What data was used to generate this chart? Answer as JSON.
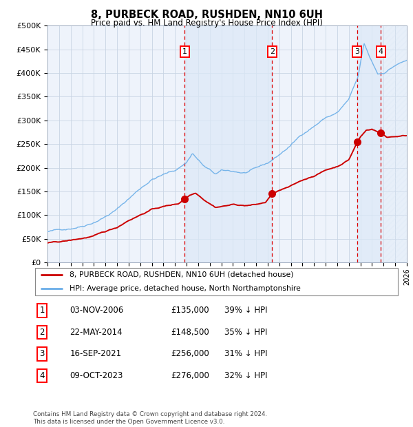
{
  "title": "8, PURBECK ROAD, RUSHDEN, NN10 6UH",
  "subtitle": "Price paid vs. HM Land Registry's House Price Index (HPI)",
  "legend_line1": "8, PURBECK ROAD, RUSHDEN, NN10 6UH (detached house)",
  "legend_line2": "HPI: Average price, detached house, North Northamptonshire",
  "footer": "Contains HM Land Registry data © Crown copyright and database right 2024.\nThis data is licensed under the Open Government Licence v3.0.",
  "transactions": [
    {
      "num": 1,
      "date": "03-NOV-2006",
      "price": 135000,
      "hpi_pct": "39% ↓ HPI",
      "year_x": 2006.84
    },
    {
      "num": 2,
      "date": "22-MAY-2014",
      "price": 148500,
      "hpi_pct": "35% ↓ HPI",
      "year_x": 2014.38
    },
    {
      "num": 3,
      "date": "16-SEP-2021",
      "price": 256000,
      "hpi_pct": "31% ↓ HPI",
      "year_x": 2021.71
    },
    {
      "num": 4,
      "date": "09-OCT-2023",
      "price": 276000,
      "hpi_pct": "32% ↓ HPI",
      "year_x": 2023.77
    }
  ],
  "hpi_color": "#6aaee8",
  "price_color": "#cc0000",
  "dot_color": "#cc0000",
  "vline_color": "#dd0000",
  "background_shading_color": "#dce9f7",
  "ylabel_ticks": [
    "£0",
    "£50K",
    "£100K",
    "£150K",
    "£200K",
    "£250K",
    "£300K",
    "£350K",
    "£400K",
    "£450K",
    "£500K"
  ],
  "ytick_values": [
    0,
    50000,
    100000,
    150000,
    200000,
    250000,
    300000,
    350000,
    400000,
    450000,
    500000
  ],
  "xmin": 1995,
  "xmax": 2026,
  "ymin": 0,
  "ymax": 500000,
  "hpi_anchors": [
    [
      1995.0,
      65000
    ],
    [
      1996.0,
      68000
    ],
    [
      1997.0,
      73000
    ],
    [
      1998.0,
      80000
    ],
    [
      1999.0,
      90000
    ],
    [
      2000.0,
      103000
    ],
    [
      2001.0,
      118000
    ],
    [
      2002.0,
      140000
    ],
    [
      2003.0,
      162000
    ],
    [
      2004.0,
      182000
    ],
    [
      2005.0,
      192000
    ],
    [
      2006.0,
      200000
    ],
    [
      2007.0,
      218000
    ],
    [
      2007.5,
      238000
    ],
    [
      2008.5,
      210000
    ],
    [
      2009.5,
      192000
    ],
    [
      2010.0,
      198000
    ],
    [
      2011.0,
      196000
    ],
    [
      2012.0,
      193000
    ],
    [
      2013.0,
      200000
    ],
    [
      2014.0,
      210000
    ],
    [
      2015.0,
      228000
    ],
    [
      2016.0,
      248000
    ],
    [
      2017.0,
      272000
    ],
    [
      2018.0,
      290000
    ],
    [
      2019.0,
      308000
    ],
    [
      2020.0,
      318000
    ],
    [
      2021.0,
      345000
    ],
    [
      2021.8,
      390000
    ],
    [
      2022.3,
      460000
    ],
    [
      2022.8,
      430000
    ],
    [
      2023.5,
      395000
    ],
    [
      2024.0,
      398000
    ],
    [
      2025.0,
      415000
    ],
    [
      2026.0,
      425000
    ]
  ],
  "price_anchors": [
    [
      1995.0,
      41000
    ],
    [
      1996.0,
      43000
    ],
    [
      1997.0,
      46000
    ],
    [
      1998.0,
      50000
    ],
    [
      1999.0,
      55000
    ],
    [
      2000.0,
      63000
    ],
    [
      2001.0,
      72000
    ],
    [
      2002.0,
      88000
    ],
    [
      2003.0,
      100000
    ],
    [
      2004.0,
      112000
    ],
    [
      2005.0,
      118000
    ],
    [
      2006.3,
      124000
    ],
    [
      2006.84,
      135000
    ],
    [
      2007.3,
      143000
    ],
    [
      2007.8,
      148000
    ],
    [
      2008.5,
      135000
    ],
    [
      2009.5,
      120000
    ],
    [
      2010.0,
      122000
    ],
    [
      2011.0,
      126000
    ],
    [
      2012.0,
      124000
    ],
    [
      2013.0,
      126000
    ],
    [
      2013.8,
      130000
    ],
    [
      2014.38,
      148500
    ],
    [
      2015.0,
      155000
    ],
    [
      2016.0,
      163000
    ],
    [
      2017.0,
      175000
    ],
    [
      2018.0,
      185000
    ],
    [
      2019.0,
      197000
    ],
    [
      2020.0,
      205000
    ],
    [
      2021.0,
      220000
    ],
    [
      2021.71,
      256000
    ],
    [
      2022.0,
      268000
    ],
    [
      2022.5,
      282000
    ],
    [
      2023.0,
      285000
    ],
    [
      2023.77,
      276000
    ],
    [
      2024.3,
      268000
    ],
    [
      2025.0,
      270000
    ],
    [
      2026.0,
      272000
    ]
  ]
}
